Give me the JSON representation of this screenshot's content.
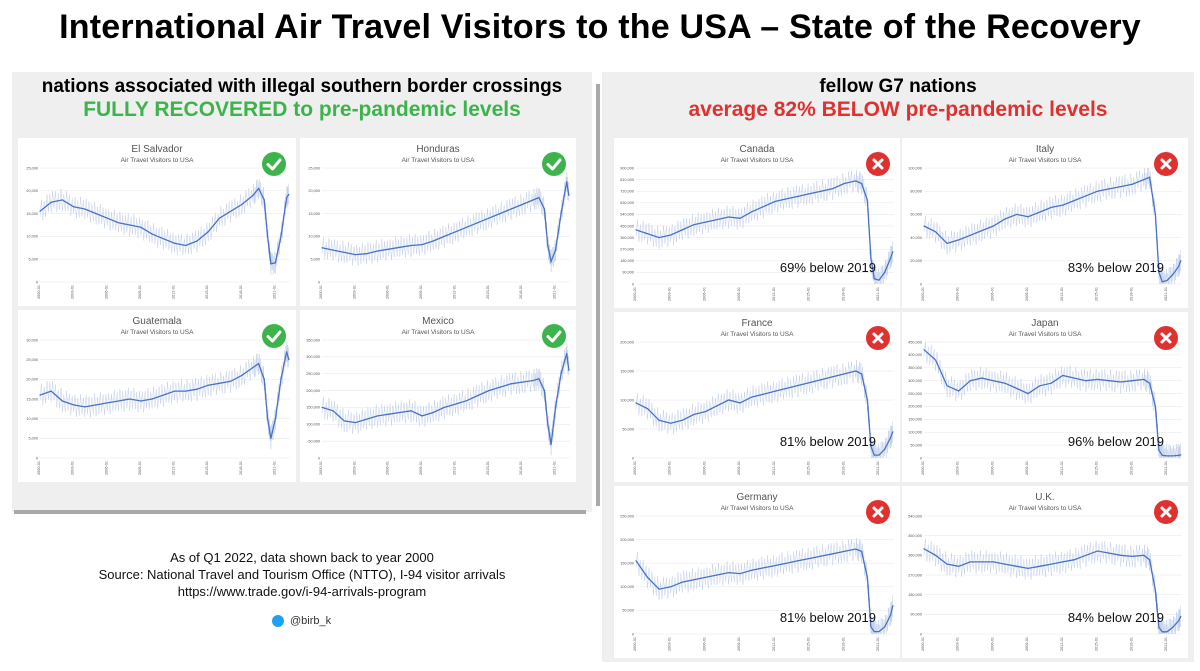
{
  "title": "International Air Travel Visitors to the USA – State of the Recovery",
  "left_header": {
    "line1": "nations associated with illegal southern border crossings",
    "line2": "FULLY RECOVERED to pre-pandemic levels"
  },
  "right_header": {
    "line1": "fellow G7 nations",
    "line2": "average 82% BELOW pre-pandemic levels"
  },
  "footer": {
    "line1": "As of Q1 2022, data shown back to year 2000",
    "line2": "Source: National Travel and Tourism Office (NTTO), I-94 visitor arrivals",
    "line3": "https://www.trade.gov/i-94-arrivals-program",
    "handle": "@birb_k"
  },
  "colors": {
    "line": "#4a72c4",
    "noise": "#b9c9e8",
    "check": "#3cb44b",
    "cross": "#e03131"
  },
  "chart_data": [
    {
      "type": "line",
      "title": "El Salvador",
      "subtitle": "Air Travel Visitors to USA",
      "status": "check-icon",
      "ylim": [
        0,
        25000
      ],
      "yticks": [
        "0",
        "5,000",
        "10,000",
        "15,000",
        "20,000",
        "25,000"
      ],
      "note": "",
      "xticks": [
        "2000-01",
        "2003-01",
        "2006-01",
        "2009-01",
        "2012-01",
        "2015-01",
        "2018-01",
        "2021-01"
      ],
      "x": [
        2000,
        2001,
        2002,
        2003,
        2004,
        2005,
        2006,
        2007,
        2008,
        2009,
        2010,
        2011,
        2012,
        2013,
        2014,
        2015,
        2016,
        2017,
        2018,
        2019,
        2019.5,
        2020,
        2020.3,
        2020.6,
        2021,
        2021.5,
        2022,
        2022.2
      ],
      "y": [
        15500,
        17500,
        18000,
        16500,
        16000,
        15000,
        14000,
        13000,
        12500,
        12000,
        10500,
        9500,
        8500,
        8000,
        9000,
        11000,
        14000,
        15500,
        17000,
        19000,
        20500,
        18000,
        10000,
        4000,
        4200,
        10000,
        18500,
        19200
      ]
    },
    {
      "type": "line",
      "title": "Honduras",
      "subtitle": "Air Travel Visitors to USA",
      "status": "check-icon",
      "ylim": [
        0,
        25000
      ],
      "yticks": [
        "0",
        "5,000",
        "10,000",
        "15,000",
        "20,000",
        "25,000"
      ],
      "note": "",
      "xticks": [
        "2000-01",
        "2003-01",
        "2006-01",
        "2009-01",
        "2012-01",
        "2015-01",
        "2018-01",
        "2021-01"
      ],
      "x": [
        2000,
        2001,
        2002,
        2003,
        2004,
        2005,
        2006,
        2007,
        2008,
        2009,
        2010,
        2011,
        2012,
        2013,
        2014,
        2015,
        2016,
        2017,
        2018,
        2019,
        2019.5,
        2020,
        2020.3,
        2020.6,
        2021,
        2021.5,
        2022,
        2022.2
      ],
      "y": [
        7500,
        7000,
        6500,
        6000,
        6200,
        6800,
        7200,
        7600,
        8000,
        8200,
        9000,
        10000,
        11000,
        12000,
        13000,
        14000,
        15000,
        16000,
        17000,
        18000,
        18500,
        16000,
        8000,
        4500,
        7000,
        15000,
        22000,
        19000
      ]
    },
    {
      "type": "line",
      "title": "Guatemala",
      "subtitle": "Air Travel Visitors to USA",
      "status": "check-icon",
      "ylim": [
        0,
        30000
      ],
      "yticks": [
        "0",
        "5,000",
        "10,000",
        "15,000",
        "20,000",
        "25,000",
        "30,000"
      ],
      "note": "",
      "xticks": [
        "2000-01",
        "2003-01",
        "2006-01",
        "2009-01",
        "2012-01",
        "2015-01",
        "2018-01",
        "2021-01"
      ],
      "x": [
        2000,
        2001,
        2002,
        2003,
        2004,
        2005,
        2006,
        2007,
        2008,
        2009,
        2010,
        2011,
        2012,
        2013,
        2014,
        2015,
        2016,
        2017,
        2018,
        2019,
        2019.5,
        2020,
        2020.3,
        2020.6,
        2021,
        2021.5,
        2022,
        2022.2
      ],
      "y": [
        16000,
        17000,
        14500,
        13500,
        13000,
        13500,
        14000,
        14500,
        15000,
        14500,
        15000,
        16000,
        17000,
        17000,
        17500,
        18500,
        19000,
        19500,
        21000,
        23000,
        24000,
        20000,
        10000,
        5000,
        10000,
        20000,
        27000,
        25000
      ]
    },
    {
      "type": "line",
      "title": "Mexico",
      "subtitle": "Air Travel Visitors to USA",
      "status": "check-icon",
      "ylim": [
        0,
        350000
      ],
      "yticks": [
        "0",
        "50,000",
        "100,000",
        "150,000",
        "200,000",
        "250,000",
        "300,000",
        "350,000"
      ],
      "note": "",
      "xticks": [
        "2000-01",
        "2003-01",
        "2006-01",
        "2009-01",
        "2012-01",
        "2015-01",
        "2018-01",
        "2021-01"
      ],
      "x": [
        2000,
        2001,
        2002,
        2003,
        2004,
        2005,
        2006,
        2007,
        2008,
        2009,
        2010,
        2011,
        2012,
        2013,
        2014,
        2015,
        2016,
        2017,
        2018,
        2019,
        2019.5,
        2020,
        2020.3,
        2020.6,
        2021,
        2021.5,
        2022,
        2022.2
      ],
      "y": [
        150000,
        140000,
        110000,
        105000,
        115000,
        125000,
        130000,
        135000,
        140000,
        125000,
        135000,
        150000,
        160000,
        170000,
        185000,
        200000,
        210000,
        220000,
        225000,
        230000,
        235000,
        200000,
        100000,
        40000,
        150000,
        250000,
        310000,
        260000
      ]
    },
    {
      "type": "line",
      "title": "Canada",
      "subtitle": "Air Travel Visitors to USA",
      "status": "cross-icon",
      "ylim": [
        0,
        900000
      ],
      "yticks": [
        "0",
        "90,000",
        "180,000",
        "270,000",
        "360,000",
        "450,000",
        "540,000",
        "630,000",
        "720,000",
        "810,000",
        "900,000"
      ],
      "note": "69% below 2019",
      "xticks": [
        "2000-01",
        "2003-01",
        "2006-01",
        "2009-01",
        "2012-01",
        "2015-01",
        "2018-01",
        "2021-01"
      ],
      "x": [
        2000,
        2001,
        2002,
        2003,
        2004,
        2005,
        2006,
        2007,
        2008,
        2009,
        2010,
        2011,
        2012,
        2013,
        2014,
        2015,
        2016,
        2017,
        2018,
        2019,
        2019.5,
        2020,
        2020.3,
        2020.6,
        2021,
        2021.5,
        2022,
        2022.2
      ],
      "y": [
        420000,
        390000,
        360000,
        380000,
        420000,
        460000,
        480000,
        500000,
        520000,
        510000,
        560000,
        600000,
        640000,
        660000,
        680000,
        700000,
        720000,
        740000,
        780000,
        800000,
        780000,
        650000,
        200000,
        40000,
        30000,
        90000,
        200000,
        250000
      ]
    },
    {
      "type": "line",
      "title": "Italy",
      "subtitle": "Air Travel Visitors to USA",
      "status": "cross-icon",
      "ylim": [
        0,
        100000
      ],
      "yticks": [
        "0",
        "20,000",
        "40,000",
        "60,000",
        "80,000",
        "100,000"
      ],
      "note": "83% below 2019",
      "xticks": [
        "2000-01",
        "2003-01",
        "2006-01",
        "2009-01",
        "2012-01",
        "2015-01",
        "2018-01",
        "2021-01"
      ],
      "x": [
        2000,
        2001,
        2002,
        2003,
        2004,
        2005,
        2006,
        2007,
        2008,
        2009,
        2010,
        2011,
        2012,
        2013,
        2014,
        2015,
        2016,
        2017,
        2018,
        2019,
        2019.5,
        2020,
        2020.3,
        2020.6,
        2021,
        2021.5,
        2022,
        2022.2
      ],
      "y": [
        50000,
        45000,
        35000,
        38000,
        42000,
        46000,
        50000,
        56000,
        60000,
        58000,
        62000,
        66000,
        68000,
        72000,
        76000,
        80000,
        82000,
        84000,
        86000,
        90000,
        92000,
        60000,
        10000,
        2000,
        3000,
        8000,
        15000,
        20000
      ]
    },
    {
      "type": "line",
      "title": "France",
      "subtitle": "Air Travel Visitors to USA",
      "status": "cross-icon",
      "ylim": [
        0,
        200000
      ],
      "yticks": [
        "0",
        "50,000",
        "100,000",
        "150,000",
        "200,000"
      ],
      "note": "81% below 2019",
      "xticks": [
        "2000-01",
        "2003-01",
        "2006-01",
        "2009-01",
        "2012-01",
        "2015-01",
        "2018-01",
        "2021-01"
      ],
      "x": [
        2000,
        2001,
        2002,
        2003,
        2004,
        2005,
        2006,
        2007,
        2008,
        2009,
        2010,
        2011,
        2012,
        2013,
        2014,
        2015,
        2016,
        2017,
        2018,
        2019,
        2019.5,
        2020,
        2020.3,
        2020.6,
        2021,
        2021.5,
        2022,
        2022.2
      ],
      "y": [
        95000,
        85000,
        65000,
        60000,
        65000,
        75000,
        80000,
        90000,
        100000,
        95000,
        105000,
        110000,
        115000,
        120000,
        125000,
        130000,
        135000,
        140000,
        145000,
        150000,
        145000,
        100000,
        20000,
        5000,
        5000,
        15000,
        35000,
        45000
      ]
    },
    {
      "type": "line",
      "title": "Japan",
      "subtitle": "Air Travel Visitors to USA",
      "status": "cross-icon",
      "ylim": [
        0,
        450000
      ],
      "yticks": [
        "0",
        "50,000",
        "100,000",
        "150,000",
        "200,000",
        "250,000",
        "300,000",
        "350,000",
        "400,000",
        "450,000"
      ],
      "note": "96% below 2019",
      "xticks": [
        "2000-01",
        "2003-01",
        "2006-01",
        "2009-01",
        "2012-01",
        "2015-01",
        "2018-01",
        "2021-01"
      ],
      "x": [
        2000,
        2001,
        2002,
        2003,
        2004,
        2005,
        2006,
        2007,
        2008,
        2009,
        2010,
        2011,
        2012,
        2013,
        2014,
        2015,
        2016,
        2017,
        2018,
        2019,
        2019.5,
        2020,
        2020.3,
        2020.6,
        2021,
        2021.5,
        2022,
        2022.2
      ],
      "y": [
        420000,
        380000,
        280000,
        260000,
        300000,
        310000,
        300000,
        290000,
        270000,
        250000,
        280000,
        290000,
        320000,
        310000,
        300000,
        305000,
        300000,
        295000,
        300000,
        305000,
        290000,
        200000,
        30000,
        10000,
        8000,
        8000,
        10000,
        12000
      ]
    },
    {
      "type": "line",
      "title": "Germany",
      "subtitle": "Air Travel Visitors to USA",
      "status": "cross-icon",
      "ylim": [
        0,
        250000
      ],
      "yticks": [
        "0",
        "50,000",
        "100,000",
        "150,000",
        "200,000",
        "250,000"
      ],
      "note": "81% below 2019",
      "xticks": [
        "2000-01",
        "2003-01",
        "2006-01",
        "2009-01",
        "2012-01",
        "2015-01",
        "2018-01",
        "2021-01"
      ],
      "x": [
        2000,
        2001,
        2002,
        2003,
        2004,
        2005,
        2006,
        2007,
        2008,
        2009,
        2010,
        2011,
        2012,
        2013,
        2014,
        2015,
        2016,
        2017,
        2018,
        2019,
        2019.5,
        2020,
        2020.3,
        2020.6,
        2021,
        2021.5,
        2022,
        2022.2
      ],
      "y": [
        155000,
        120000,
        95000,
        100000,
        110000,
        115000,
        120000,
        125000,
        130000,
        128000,
        135000,
        140000,
        145000,
        150000,
        155000,
        160000,
        165000,
        170000,
        175000,
        180000,
        175000,
        120000,
        15000,
        5000,
        5000,
        15000,
        40000,
        60000
      ]
    },
    {
      "type": "line",
      "title": "U.K.",
      "subtitle": "Air Travel Visitors to USA",
      "status": "cross-icon",
      "ylim": [
        0,
        540000
      ],
      "yticks": [
        "0",
        "90,000",
        "180,000",
        "270,000",
        "360,000",
        "450,000",
        "540,000"
      ],
      "note": "84% below 2019",
      "xticks": [
        "2000-01",
        "2003-01",
        "2006-01",
        "2009-01",
        "2012-01",
        "2015-01",
        "2018-01",
        "2021-01"
      ],
      "x": [
        2000,
        2001,
        2002,
        2003,
        2004,
        2005,
        2006,
        2007,
        2008,
        2009,
        2010,
        2011,
        2012,
        2013,
        2014,
        2015,
        2016,
        2017,
        2018,
        2019,
        2019.5,
        2020,
        2020.3,
        2020.6,
        2021,
        2021.5,
        2022,
        2022.2
      ],
      "y": [
        390000,
        360000,
        320000,
        310000,
        330000,
        330000,
        330000,
        320000,
        310000,
        300000,
        310000,
        320000,
        330000,
        340000,
        360000,
        380000,
        370000,
        360000,
        355000,
        360000,
        340000,
        200000,
        30000,
        10000,
        10000,
        30000,
        60000,
        80000
      ]
    }
  ]
}
